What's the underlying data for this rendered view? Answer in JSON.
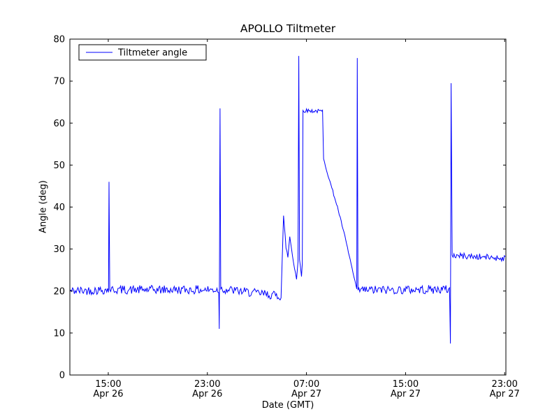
{
  "chart_data": {
    "type": "line",
    "title": "APOLLO Tiltmeter",
    "xlabel": "Date (GMT)",
    "ylabel": "Angle (deg)",
    "legend": [
      "Tiltmeter angle"
    ],
    "line_color": "#0000ff",
    "axes_color": "#000000",
    "background": "#ffffff",
    "x_unit": "hours since Apr 26 00:00 GMT",
    "xlim": [
      11.9,
      47.1
    ],
    "ylim": [
      0,
      80
    ],
    "yticks": [
      0,
      10,
      20,
      30,
      40,
      50,
      60,
      70,
      80
    ],
    "xticks": [
      {
        "t": 15,
        "time": "15:00",
        "date": "Apr 26"
      },
      {
        "t": 23,
        "time": "23:00",
        "date": "Apr 26"
      },
      {
        "t": 31,
        "time": "07:00",
        "date": "Apr 27"
      },
      {
        "t": 39,
        "time": "15:00",
        "date": "Apr 27"
      },
      {
        "t": 47,
        "time": "23:00",
        "date": "Apr 27"
      }
    ],
    "noise_seed": 42,
    "waypoints_format": [
      "t_hours",
      "angle_deg",
      "noise_amp_deg"
    ],
    "waypoints": [
      [
        11.9,
        20.0,
        0.7
      ],
      [
        15.02,
        20.3,
        0.7
      ],
      [
        15.06,
        46.0,
        0
      ],
      [
        15.12,
        20.3,
        0.7
      ],
      [
        23.92,
        20.3,
        0.7
      ],
      [
        23.96,
        11.0,
        0
      ],
      [
        24.02,
        63.5,
        0
      ],
      [
        24.08,
        20.5,
        0.7
      ],
      [
        28.95,
        18.8,
        0.7
      ],
      [
        29.15,
        37.5,
        0.3
      ],
      [
        29.35,
        30.5,
        0.3
      ],
      [
        29.5,
        28.0,
        0.3
      ],
      [
        29.65,
        33.0,
        0.3
      ],
      [
        29.95,
        27.0,
        0.3
      ],
      [
        30.2,
        23.0,
        0.3
      ],
      [
        30.32,
        27.0,
        0
      ],
      [
        30.38,
        76.0,
        0
      ],
      [
        30.44,
        27.5,
        0.3
      ],
      [
        30.6,
        23.5,
        0.3
      ],
      [
        30.66,
        26.5,
        0
      ],
      [
        30.72,
        63.0,
        0.3
      ],
      [
        32.3,
        62.8,
        0.3
      ],
      [
        32.38,
        51.5,
        0.2
      ],
      [
        32.9,
        46.0,
        0.2
      ],
      [
        33.5,
        40.0,
        0.2
      ],
      [
        34.1,
        33.0,
        0.2
      ],
      [
        34.6,
        26.5,
        0.2
      ],
      [
        35.0,
        21.0,
        0.2
      ],
      [
        35.06,
        20.5,
        0
      ],
      [
        35.1,
        75.5,
        0
      ],
      [
        35.16,
        20.2,
        0.7
      ],
      [
        42.55,
        20.4,
        0.7
      ],
      [
        42.62,
        7.5,
        0
      ],
      [
        42.68,
        69.5,
        0
      ],
      [
        42.76,
        28.5,
        0.5
      ],
      [
        47.05,
        27.8,
        0.5
      ]
    ]
  }
}
